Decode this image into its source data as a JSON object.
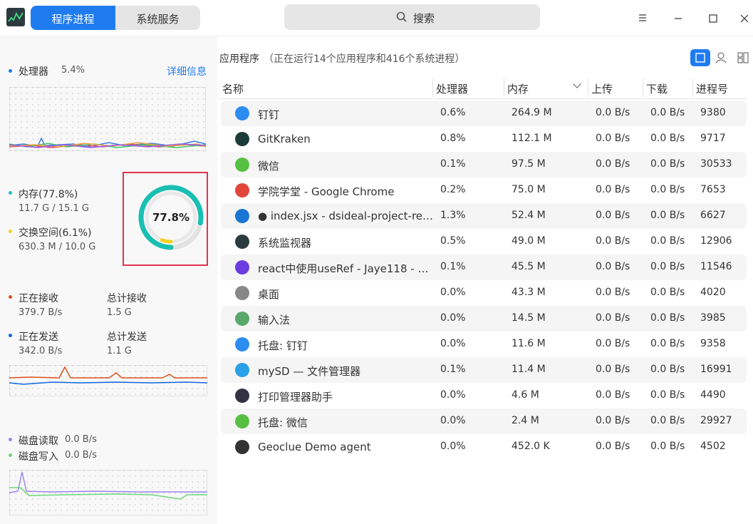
{
  "tabs": [
    "程序进程",
    "系统服务"
  ],
  "search": "搜索",
  "sidebar": {
    "cpu": {
      "label": "处理器",
      "value": "5.4%",
      "link": "详细信息"
    },
    "memory": {
      "label": "内存(77.8%)",
      "detail": "11.7 G / 15.1 G",
      "swap_label": "交换空间(6.1%)",
      "swap_detail": "630.3 M / 10.0 G",
      "ring": {
        "value": 77.8,
        "label": "77.8%",
        "swap": 6.1
      }
    },
    "network": {
      "receiving": "正在接收",
      "receiving_value": "379.7 B/s",
      "total_received": "总计接收",
      "total_received_value": "1.5 G",
      "sending": "正在发送",
      "sending_value": "342.0 B/s",
      "total_sent": "总计发送",
      "total_sent_value": "1.1 G"
    },
    "disk": {
      "read": "磁盘读取",
      "read_value": "0.0 B/s",
      "write": "磁盘写入",
      "write_value": "0.0 B/s"
    }
  },
  "table": {
    "title": "应用程序",
    "subtitle": "（正在运行14个应用程序和416个系统进程）",
    "columns": [
      "名称",
      "处理器",
      "内存",
      "上传",
      "下载",
      "进程号"
    ],
    "rows": [
      [
        "钉钉",
        "0.6%",
        "264.9 M",
        "0.0 B/s",
        "0.0 B/s",
        "9380"
      ],
      [
        "GitKraken",
        "0.8%",
        "112.1 M",
        "0.0 B/s",
        "0.0 B/s",
        "9717"
      ],
      [
        "微信",
        "0.1%",
        "97.5 M",
        "0.0 B/s",
        "0.0 B/s",
        "30533"
      ],
      [
        "学院学堂 - Google Chrome",
        "0.2%",
        "75.0 M",
        "0.0 B/s",
        "0.0 B/s",
        "7653"
      ],
      [
        "● index.jsx - dsideal-project-re…",
        "1.3%",
        "52.4 M",
        "0.0 B/s",
        "0.0 B/s",
        "6627"
      ],
      [
        "系统监视器",
        "0.5%",
        "49.0 M",
        "0.0 B/s",
        "0.0 B/s",
        "12906"
      ],
      [
        "react中使用useRef - Jaye118 - …",
        "0.1%",
        "45.5 M",
        "0.0 B/s",
        "0.0 B/s",
        "11546"
      ],
      [
        "桌面",
        "0.0%",
        "43.3 M",
        "0.0 B/s",
        "0.0 B/s",
        "4020"
      ],
      [
        "输入法",
        "0.0%",
        "14.5 M",
        "0.0 B/s",
        "0.0 B/s",
        "3985"
      ],
      [
        "托盘: 钉钉",
        "0.0%",
        "11.6 M",
        "0.0 B/s",
        "0.0 B/s",
        "9358"
      ],
      [
        "mySD — 文件管理器",
        "0.1%",
        "11.4 M",
        "0.0 B/s",
        "0.0 B/s",
        "16991"
      ],
      [
        "打印管理器助手",
        "0.0%",
        "4.6 M",
        "0.0 B/s",
        "0.0 B/s",
        "4490"
      ],
      [
        "托盘: 微信",
        "0.0%",
        "2.4 M",
        "0.0 B/s",
        "0.0 B/s",
        "29927"
      ],
      [
        "Geoclue Demo agent",
        "0.0%",
        "452.0 K",
        "0.0 B/s",
        "0.0 B/s",
        "4502"
      ]
    ]
  }
}
